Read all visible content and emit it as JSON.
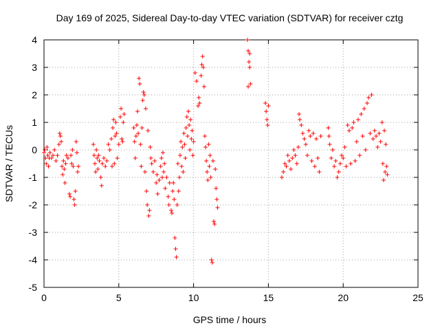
{
  "chart_data": {
    "type": "scatter",
    "title": "Day 169 of 2025, Sidereal Day-to-day VTEC variation (SDTVAR) for receiver cztg",
    "xlabel": "GPS time / hours",
    "ylabel": "SDTVAR / TECUs",
    "xlim": [
      0,
      25
    ],
    "ylim": [
      -5,
      4
    ],
    "xticks": [
      0,
      5,
      10,
      15,
      20,
      25
    ],
    "yticks": [
      -5,
      -4,
      -3,
      -2,
      -1,
      0,
      1,
      2,
      3,
      4
    ],
    "xtick_labels": [
      "0",
      "5",
      "10",
      "15",
      "20",
      "25"
    ],
    "ytick_labels": [
      "-5",
      "-4",
      "-3",
      "-2",
      "-1",
      "0",
      "1",
      "2",
      "3",
      "4"
    ],
    "grid": true,
    "marker": "+",
    "color": "#ff0000",
    "series": [
      {
        "name": "SDTVAR",
        "points": [
          [
            0.0,
            -0.1
          ],
          [
            0.05,
            0.0
          ],
          [
            0.1,
            -0.3
          ],
          [
            0.15,
            -0.5
          ],
          [
            0.2,
            0.1
          ],
          [
            0.25,
            -0.2
          ],
          [
            0.3,
            -0.6
          ],
          [
            0.35,
            -0.3
          ],
          [
            0.4,
            -0.1
          ],
          [
            0.5,
            -0.3
          ],
          [
            0.6,
            -0.2
          ],
          [
            0.7,
            0.0
          ],
          [
            0.8,
            -0.4
          ],
          [
            0.9,
            -0.2
          ],
          [
            1.0,
            0.2
          ],
          [
            1.05,
            0.6
          ],
          [
            1.1,
            0.5
          ],
          [
            1.15,
            0.3
          ],
          [
            1.2,
            -0.6
          ],
          [
            1.25,
            -0.9
          ],
          [
            1.3,
            -0.4
          ],
          [
            1.35,
            -0.7
          ],
          [
            1.4,
            -1.2
          ],
          [
            1.45,
            -0.5
          ],
          [
            1.5,
            -0.2
          ],
          [
            1.6,
            -0.3
          ],
          [
            1.7,
            -1.6
          ],
          [
            1.75,
            -1.7
          ],
          [
            1.8,
            -0.2
          ],
          [
            1.85,
            -0.5
          ],
          [
            1.9,
            0.0
          ],
          [
            1.95,
            -0.6
          ],
          [
            2.0,
            -1.8
          ],
          [
            2.05,
            -2.0
          ],
          [
            2.1,
            -1.5
          ],
          [
            2.15,
            0.3
          ],
          [
            2.2,
            -0.1
          ],
          [
            2.25,
            -0.8
          ],
          [
            2.3,
            -0.6
          ],
          [
            3.3,
            0.2
          ],
          [
            3.35,
            -0.2
          ],
          [
            3.4,
            -0.5
          ],
          [
            3.45,
            -0.8
          ],
          [
            3.5,
            0.0
          ],
          [
            3.55,
            -0.3
          ],
          [
            3.6,
            -0.7
          ],
          [
            3.65,
            -0.2
          ],
          [
            3.7,
            -0.4
          ],
          [
            3.8,
            -1.0
          ],
          [
            3.85,
            -1.3
          ],
          [
            3.9,
            -0.5
          ],
          [
            4.0,
            -0.3
          ],
          [
            4.1,
            -0.6
          ],
          [
            4.2,
            -0.4
          ],
          [
            4.3,
            0.2
          ],
          [
            4.4,
            0.0
          ],
          [
            4.5,
            0.4
          ],
          [
            4.55,
            -0.6
          ],
          [
            4.6,
            0.8
          ],
          [
            4.65,
            1.1
          ],
          [
            4.7,
            -0.5
          ],
          [
            4.75,
            0.5
          ],
          [
            4.8,
            1.0
          ],
          [
            4.85,
            0.6
          ],
          [
            4.9,
            -0.3
          ],
          [
            5.0,
            0.2
          ],
          [
            5.1,
            1.2
          ],
          [
            5.15,
            1.5
          ],
          [
            5.2,
            0.4
          ],
          [
            5.25,
            0.3
          ],
          [
            5.3,
            1.0
          ],
          [
            5.35,
            1.3
          ],
          [
            6.0,
            0.8
          ],
          [
            6.05,
            0.3
          ],
          [
            6.1,
            -0.3
          ],
          [
            6.15,
            0.5
          ],
          [
            6.2,
            0.9
          ],
          [
            6.25,
            1.4
          ],
          [
            6.3,
            0.6
          ],
          [
            6.35,
            2.6
          ],
          [
            6.4,
            2.4
          ],
          [
            6.45,
            0.2
          ],
          [
            6.5,
            -0.6
          ],
          [
            6.55,
            0.8
          ],
          [
            6.6,
            1.8
          ],
          [
            6.65,
            2.1
          ],
          [
            6.7,
            2.0
          ],
          [
            6.75,
            -0.8
          ],
          [
            6.8,
            1.5
          ],
          [
            6.85,
            -1.5
          ],
          [
            6.9,
            -2.0
          ],
          [
            6.95,
            0.7
          ],
          [
            7.0,
            -2.4
          ],
          [
            7.05,
            -2.2
          ],
          [
            7.1,
            0.1
          ],
          [
            7.15,
            -0.3
          ],
          [
            7.2,
            -0.5
          ],
          [
            7.3,
            -0.8
          ],
          [
            7.4,
            -0.4
          ],
          [
            7.5,
            -1.2
          ],
          [
            7.55,
            -0.9
          ],
          [
            7.6,
            -1.6
          ],
          [
            7.7,
            -1.1
          ],
          [
            7.8,
            -0.6
          ],
          [
            7.85,
            -0.3
          ],
          [
            7.9,
            -1.0
          ],
          [
            7.95,
            -0.1
          ],
          [
            8.0,
            -0.8
          ],
          [
            8.05,
            -0.5
          ],
          [
            8.1,
            -1.4
          ],
          [
            8.2,
            -1.0
          ],
          [
            8.3,
            -1.7
          ],
          [
            8.35,
            -2.0
          ],
          [
            8.4,
            -1.2
          ],
          [
            8.5,
            -2.2
          ],
          [
            8.55,
            -2.3
          ],
          [
            8.6,
            -1.5
          ],
          [
            8.65,
            -1.2
          ],
          [
            8.7,
            -1.8
          ],
          [
            8.75,
            -3.2
          ],
          [
            8.8,
            -3.6
          ],
          [
            8.85,
            -3.9
          ],
          [
            8.9,
            -2.0
          ],
          [
            8.95,
            -0.5
          ],
          [
            9.0,
            -1.5
          ],
          [
            9.05,
            -1.0
          ],
          [
            9.1,
            -0.2
          ],
          [
            9.15,
            0.3
          ],
          [
            9.2,
            -0.6
          ],
          [
            9.25,
            0.1
          ],
          [
            9.3,
            -0.8
          ],
          [
            9.35,
            0.6
          ],
          [
            9.4,
            0.2
          ],
          [
            9.45,
            -0.3
          ],
          [
            9.5,
            0.8
          ],
          [
            9.55,
            1.2
          ],
          [
            9.6,
            0.5
          ],
          [
            9.65,
            1.4
          ],
          [
            9.7,
            0.9
          ],
          [
            9.75,
            0.0
          ],
          [
            9.8,
            1.1
          ],
          [
            9.85,
            0.4
          ],
          [
            9.9,
            0.7
          ],
          [
            9.95,
            -0.2
          ],
          [
            10.0,
            0.3
          ],
          [
            10.1,
            2.8
          ],
          [
            10.2,
            2.5
          ],
          [
            10.3,
            1.6
          ],
          [
            10.35,
            1.9
          ],
          [
            10.4,
            1.7
          ],
          [
            10.5,
            2.7
          ],
          [
            10.55,
            3.1
          ],
          [
            10.6,
            3.4
          ],
          [
            10.65,
            3.0
          ],
          [
            10.7,
            2.3
          ],
          [
            10.75,
            0.5
          ],
          [
            10.8,
            0.1
          ],
          [
            10.85,
            -0.4
          ],
          [
            10.9,
            -0.8
          ],
          [
            10.95,
            -1.1
          ],
          [
            11.0,
            0.2
          ],
          [
            11.05,
            -0.6
          ],
          [
            11.1,
            -0.2
          ],
          [
            11.15,
            -1.0
          ],
          [
            11.2,
            -4.0
          ],
          [
            11.25,
            -4.1
          ],
          [
            11.3,
            -0.4
          ],
          [
            11.35,
            -2.6
          ],
          [
            11.4,
            -2.7
          ],
          [
            11.45,
            -0.7
          ],
          [
            11.5,
            -1.4
          ],
          [
            11.55,
            -1.8
          ],
          [
            11.6,
            -2.1
          ],
          [
            13.6,
            4.0
          ],
          [
            13.65,
            3.6
          ],
          [
            13.7,
            3.2
          ],
          [
            13.75,
            3.0
          ],
          [
            13.8,
            2.4
          ],
          [
            13.65,
            2.3
          ],
          [
            13.75,
            3.5
          ],
          [
            14.8,
            1.7
          ],
          [
            14.85,
            1.4
          ],
          [
            14.9,
            1.1
          ],
          [
            14.95,
            0.9
          ],
          [
            15.0,
            1.6
          ],
          [
            15.9,
            -1.0
          ],
          [
            16.0,
            -0.8
          ],
          [
            16.1,
            -0.5
          ],
          [
            16.2,
            -0.6
          ],
          [
            16.3,
            -0.2
          ],
          [
            16.4,
            -0.4
          ],
          [
            16.5,
            -0.7
          ],
          [
            16.6,
            -0.3
          ],
          [
            16.7,
            0.0
          ],
          [
            16.8,
            -0.2
          ],
          [
            16.9,
            -0.5
          ],
          [
            17.0,
            0.1
          ],
          [
            17.05,
            1.3
          ],
          [
            17.1,
            1.1
          ],
          [
            17.2,
            0.9
          ],
          [
            17.3,
            0.6
          ],
          [
            17.4,
            0.4
          ],
          [
            17.5,
            0.2
          ],
          [
            17.6,
            -0.2
          ],
          [
            17.7,
            0.7
          ],
          [
            17.8,
            0.5
          ],
          [
            17.9,
            -0.4
          ],
          [
            18.0,
            0.6
          ],
          [
            18.1,
            -0.6
          ],
          [
            18.2,
            0.4
          ],
          [
            18.3,
            -0.3
          ],
          [
            18.4,
            -0.8
          ],
          [
            18.5,
            0.5
          ],
          [
            19.0,
            0.8
          ],
          [
            19.05,
            0.5
          ],
          [
            19.1,
            0.2
          ],
          [
            19.2,
            -0.3
          ],
          [
            19.3,
            0.0
          ],
          [
            19.4,
            -0.6
          ],
          [
            19.5,
            -0.4
          ],
          [
            19.6,
            -1.0
          ],
          [
            19.7,
            -0.8
          ],
          [
            19.8,
            -0.5
          ],
          [
            19.9,
            -0.2
          ],
          [
            20.0,
            -0.3
          ],
          [
            20.1,
            0.1
          ],
          [
            20.2,
            -0.6
          ],
          [
            20.3,
            0.9
          ],
          [
            20.4,
            0.7
          ],
          [
            20.5,
            -0.5
          ],
          [
            20.6,
            0.8
          ],
          [
            20.7,
            1.0
          ],
          [
            20.8,
            -0.4
          ],
          [
            20.9,
            0.3
          ],
          [
            21.0,
            1.1
          ],
          [
            21.1,
            -0.2
          ],
          [
            21.2,
            1.3
          ],
          [
            21.3,
            0.5
          ],
          [
            21.4,
            1.5
          ],
          [
            21.5,
            0.0
          ],
          [
            21.6,
            1.7
          ],
          [
            21.7,
            1.9
          ],
          [
            21.8,
            0.6
          ],
          [
            21.9,
            2.0
          ],
          [
            22.0,
            0.4
          ],
          [
            22.1,
            0.7
          ],
          [
            22.2,
            0.5
          ],
          [
            22.3,
            0.1
          ],
          [
            22.4,
            0.6
          ],
          [
            22.5,
            0.3
          ],
          [
            22.6,
            1.0
          ],
          [
            22.65,
            -0.5
          ],
          [
            22.7,
            -1.1
          ],
          [
            22.75,
            0.7
          ],
          [
            22.8,
            -0.8
          ],
          [
            22.85,
            0.2
          ],
          [
            22.9,
            -0.6
          ],
          [
            22.95,
            -0.9
          ]
        ]
      }
    ]
  }
}
